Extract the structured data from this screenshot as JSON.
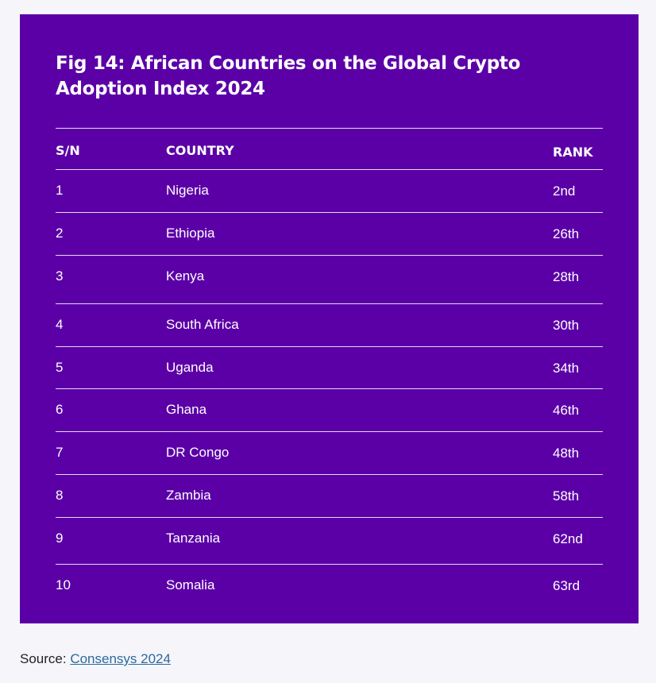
{
  "title": "Fig 14: African Countries on the Global Crypto Adoption Index 2024",
  "headers": {
    "sn": "S/N",
    "country": "COUNTRY",
    "rank": "RANK"
  },
  "rows": [
    {
      "sn": "1",
      "country": "Nigeria",
      "rank": "2nd"
    },
    {
      "sn": "2",
      "country": "Ethiopia",
      "rank": "26th"
    },
    {
      "sn": "3",
      "country": "Kenya",
      "rank": "28th"
    },
    {
      "sn": "4",
      "country": "South Africa",
      "rank": "30th"
    },
    {
      "sn": "5",
      "country": "Uganda",
      "rank": "34th"
    },
    {
      "sn": "6",
      "country": "Ghana",
      "rank": "46th"
    },
    {
      "sn": "7",
      "country": "DR Congo",
      "rank": "48th"
    },
    {
      "sn": "8",
      "country": "Zambia",
      "rank": "58th"
    },
    {
      "sn": "9",
      "country": "Tanzania",
      "rank": "62nd"
    },
    {
      "sn": "10",
      "country": "Somalia",
      "rank": "63rd"
    }
  ],
  "source": {
    "prefix": "Source: ",
    "link_text": "Consensys 2024"
  },
  "colors": {
    "card_background": "#5b00a7",
    "page_background": "#f6f5fa",
    "link": "#2a6a9e"
  }
}
